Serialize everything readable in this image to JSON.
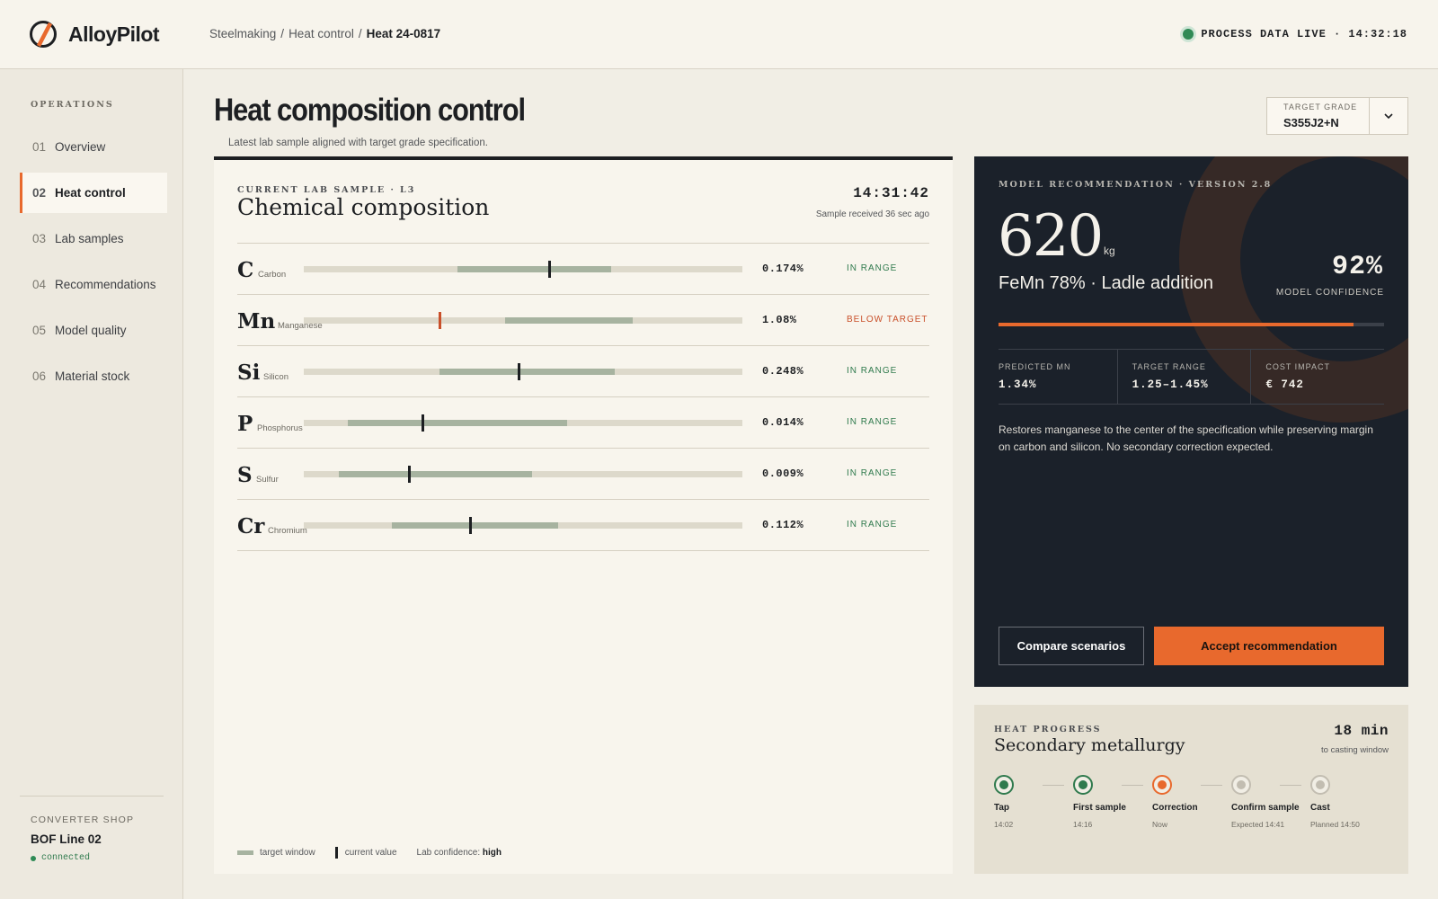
{
  "app": {
    "name": "AlloyPilot"
  },
  "breadcrumb": {
    "section": "Steelmaking",
    "sep1": "/",
    "page": "Heat control",
    "sep2": "/",
    "current": "Heat 24-0817"
  },
  "status": {
    "text": "PROCESS DATA LIVE · 14:32:18",
    "color": "#2f8a55"
  },
  "sidebar": {
    "title": "OPERATIONS",
    "items": [
      {
        "num": "01",
        "label": "Overview"
      },
      {
        "num": "02",
        "label": "Heat control",
        "active": true
      },
      {
        "num": "03",
        "label": "Lab samples"
      },
      {
        "num": "04",
        "label": "Recommendations"
      },
      {
        "num": "05",
        "label": "Model quality"
      },
      {
        "num": "06",
        "label": "Material stock"
      }
    ],
    "footer": {
      "label": "CONVERTER SHOP",
      "line": "BOF Line 02",
      "state": "connected"
    }
  },
  "page": {
    "title": "Heat composition control",
    "subtitle": "Latest lab sample aligned with target grade specification."
  },
  "grade": {
    "label": "TARGET GRADE",
    "value": "S355J2+N"
  },
  "composition": {
    "eyebrow": "CURRENT LAB SAMPLE · L3",
    "title": "Chemical composition",
    "time": "14:31:42",
    "received": "Sample received 36 sec ago",
    "rows": [
      {
        "sym": "C",
        "name": "Carbon",
        "value": "0.174%",
        "status": "IN RANGE",
        "win_start": 0.35,
        "win_end": 0.7,
        "current": 0.56,
        "ok": true
      },
      {
        "sym": "Mn",
        "name": "Manganese",
        "value": "1.08%",
        "status": "BELOW TARGET",
        "win_start": 0.46,
        "win_end": 0.75,
        "current": 0.31,
        "ok": false
      },
      {
        "sym": "Si",
        "name": "Silicon",
        "value": "0.248%",
        "status": "IN RANGE",
        "win_start": 0.31,
        "win_end": 0.71,
        "current": 0.49,
        "ok": true
      },
      {
        "sym": "P",
        "name": "Phosphorus",
        "value": "0.014%",
        "status": "IN RANGE",
        "win_start": 0.1,
        "win_end": 0.6,
        "current": 0.27,
        "ok": true
      },
      {
        "sym": "S",
        "name": "Sulfur",
        "value": "0.009%",
        "status": "IN RANGE",
        "win_start": 0.08,
        "win_end": 0.52,
        "current": 0.24,
        "ok": true
      },
      {
        "sym": "Cr",
        "name": "Chromium",
        "value": "0.112%",
        "status": "IN RANGE",
        "win_start": 0.2,
        "win_end": 0.58,
        "current": 0.38,
        "ok": true
      }
    ],
    "legend": {
      "window": "target window",
      "current": "current value",
      "conf_label": "Lab confidence:",
      "conf_value": "high"
    }
  },
  "recommendation": {
    "eyebrow": "MODEL RECOMMENDATION · VERSION 2.8",
    "amount": "620",
    "unit": "kg",
    "material": "FeMn 78% · Ladle addition",
    "confidence": "92%",
    "confidence_label": "MODEL CONFIDENCE",
    "confidence_value": 0.92,
    "stats": [
      {
        "label": "PREDICTED MN",
        "value": "1.34%"
      },
      {
        "label": "TARGET RANGE",
        "value": "1.25–1.45%"
      },
      {
        "label": "COST IMPACT",
        "value": "€ 742"
      }
    ],
    "description": "Restores manganese to the center of the specification while preserving margin on carbon and silicon. No secondary correction expected.",
    "compare_label": "Compare scenarios",
    "accept_label": "Accept recommendation",
    "accent": "#e8692d"
  },
  "progress": {
    "eyebrow": "HEAT PROGRESS",
    "title": "Secondary metallurgy",
    "minutes": "18 min",
    "minutes_label": "to casting window",
    "steps": [
      {
        "label": "Tap",
        "time": "14:02",
        "state": "done"
      },
      {
        "label": "First sample",
        "time": "14:16",
        "state": "done"
      },
      {
        "label": "Correction",
        "time": "Now",
        "state": "current"
      },
      {
        "label": "Confirm sample",
        "time": "Expected 14:41",
        "state": "todo"
      },
      {
        "label": "Cast",
        "time": "Planned 14:50",
        "state": "todo"
      }
    ]
  }
}
